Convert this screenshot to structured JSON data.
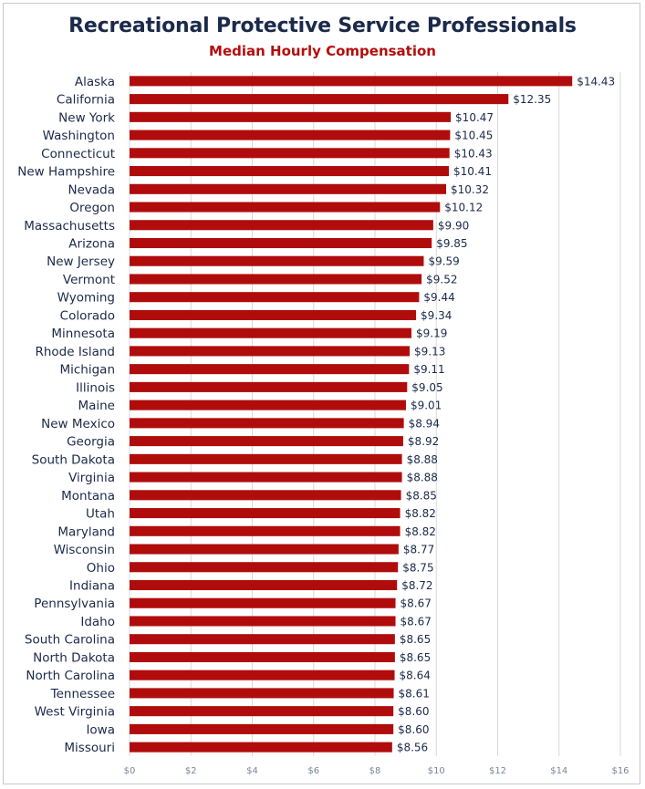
{
  "chart_data": {
    "type": "bar",
    "orientation": "horizontal",
    "title": "Recreational Protective Service Professionals",
    "subtitle": "Median Hourly Compensation",
    "categories": [
      "Alaska",
      "California",
      "New York",
      "Washington",
      "Connecticut",
      "New Hampshire",
      "Nevada",
      "Oregon",
      "Massachusetts",
      "Arizona",
      "New Jersey",
      "Vermont",
      "Wyoming",
      "Colorado",
      "Minnesota",
      "Rhode Island",
      "Michigan",
      "Illinois",
      "Maine",
      "New Mexico",
      "Georgia",
      "South Dakota",
      "Virginia",
      "Montana",
      "Utah",
      "Maryland",
      "Wisconsin",
      "Ohio",
      "Indiana",
      "Pennsylvania",
      "Idaho",
      "South Carolina",
      "North Dakota",
      "North Carolina",
      "Tennessee",
      "West Virginia",
      "Iowa",
      "Missouri"
    ],
    "values": [
      14.43,
      12.35,
      10.47,
      10.45,
      10.43,
      10.41,
      10.32,
      10.12,
      9.9,
      9.85,
      9.59,
      9.52,
      9.44,
      9.34,
      9.19,
      9.13,
      9.11,
      9.05,
      9.01,
      8.94,
      8.92,
      8.88,
      8.88,
      8.85,
      8.82,
      8.82,
      8.77,
      8.75,
      8.72,
      8.67,
      8.67,
      8.65,
      8.65,
      8.64,
      8.61,
      8.6,
      8.6,
      8.56
    ],
    "value_labels": [
      "$14.43",
      "$12.35",
      "$10.47",
      "$10.45",
      "$10.43",
      "$10.41",
      "$10.32",
      "$10.12",
      "$9.90",
      "$9.85",
      "$9.59",
      "$9.52",
      "$9.44",
      "$9.34",
      "$9.19",
      "$9.13",
      "$9.11",
      "$9.05",
      "$9.01",
      "$8.94",
      "$8.92",
      "$8.88",
      "$8.88",
      "$8.85",
      "$8.82",
      "$8.82",
      "$8.77",
      "$8.75",
      "$8.72",
      "$8.67",
      "$8.67",
      "$8.65",
      "$8.65",
      "$8.64",
      "$8.61",
      "$8.60",
      "$8.60",
      "$8.56"
    ],
    "xlim": [
      0,
      16
    ],
    "x_ticks": [
      0,
      2,
      4,
      6,
      8,
      10,
      12,
      14,
      16
    ],
    "x_tick_labels": [
      "$0",
      "$2",
      "$4",
      "$6",
      "$8",
      "$10",
      "$12",
      "$14",
      "$16"
    ],
    "grid": true,
    "legend": "none",
    "colors": {
      "bar": "#b00c0c",
      "title": "#1b2a4a",
      "subtitle": "#b50d0d",
      "grid": "#d9d9d9"
    }
  }
}
